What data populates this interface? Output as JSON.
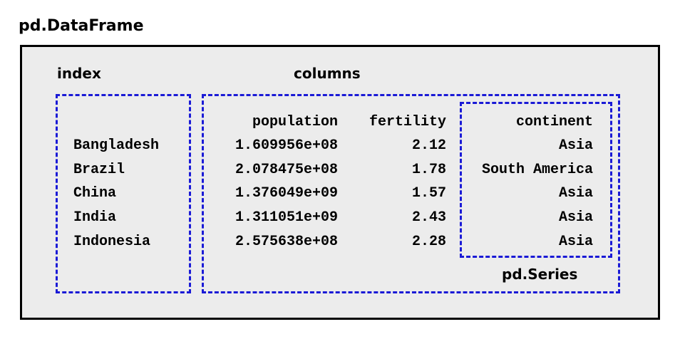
{
  "title": "pd.DataFrame",
  "labels": {
    "index": "index",
    "columns": "columns",
    "series": "pd.Series"
  },
  "colors": {
    "frame_background": "#ececec",
    "frame_border": "#000000",
    "dashed_outline": "#1a1ad6"
  },
  "table": {
    "headers": [
      "population",
      "fertility",
      "continent"
    ],
    "rows": [
      {
        "index": "Bangladesh",
        "population": "1.609956e+08",
        "fertility": "2.12",
        "continent": "Asia"
      },
      {
        "index": "Brazil",
        "population": "2.078475e+08",
        "fertility": "1.78",
        "continent": "South America"
      },
      {
        "index": "China",
        "population": "1.376049e+09",
        "fertility": "1.57",
        "continent": "Asia"
      },
      {
        "index": "India",
        "population": "1.311051e+09",
        "fertility": "2.43",
        "continent": "Asia"
      },
      {
        "index": "Indonesia",
        "population": "2.575638e+08",
        "fertility": "2.28",
        "continent": "Asia"
      }
    ]
  }
}
